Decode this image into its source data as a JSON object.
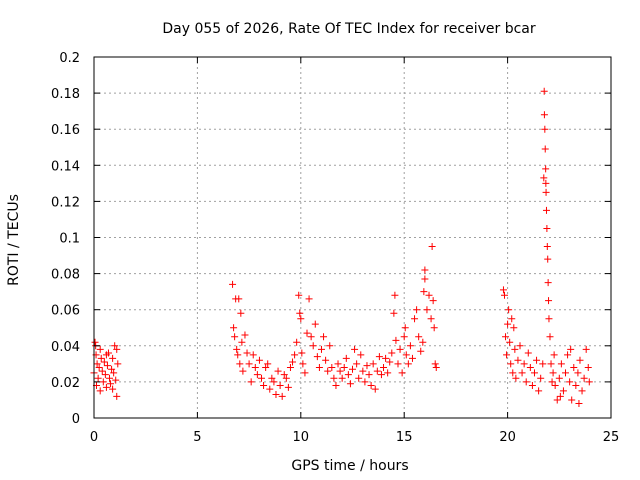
{
  "chart_data": {
    "type": "scatter",
    "title": "Day 055 of 2026, Rate Of TEC Index for receiver bcar",
    "xlabel": "GPS time / hours",
    "ylabel": "ROTI / TECUs",
    "xlim": [
      0,
      25
    ],
    "ylim": [
      0,
      0.2
    ],
    "xticks": [
      0,
      5,
      10,
      15,
      20,
      25
    ],
    "xtick_labels": [
      "0",
      "5",
      "10",
      "15",
      "20",
      "25"
    ],
    "yticks": [
      0,
      0.02,
      0.04,
      0.06,
      0.08,
      0.1,
      0.12,
      0.14,
      0.16,
      0.18,
      0.2
    ],
    "ytick_labels": [
      "0",
      "0.02",
      "0.04",
      "0.06",
      "0.08",
      "0.1",
      "0.12",
      "0.14",
      "0.16",
      "0.18",
      "0.2"
    ],
    "grid": true,
    "marker": "plus",
    "marker_color": "#ff0000",
    "series": [
      {
        "points": [
          [
            0.0,
            0.025
          ],
          [
            0.05,
            0.042
          ],
          [
            0.1,
            0.035
          ],
          [
            0.12,
            0.018
          ],
          [
            0.15,
            0.03
          ],
          [
            0.2,
            0.022
          ],
          [
            0.25,
            0.028
          ],
          [
            0.3,
            0.015
          ],
          [
            0.35,
            0.033
          ],
          [
            0.4,
            0.026
          ],
          [
            0.45,
            0.02
          ],
          [
            0.5,
            0.031
          ],
          [
            0.55,
            0.024
          ],
          [
            0.6,
            0.017
          ],
          [
            0.65,
            0.029
          ],
          [
            0.7,
            0.036
          ],
          [
            0.75,
            0.022
          ],
          [
            0.8,
            0.019
          ],
          [
            0.85,
            0.027
          ],
          [
            0.9,
            0.033
          ],
          [
            0.95,
            0.025
          ],
          [
            1.0,
            0.04
          ],
          [
            1.05,
            0.021
          ],
          [
            1.1,
            0.012
          ],
          [
            1.15,
            0.03
          ],
          [
            0.08,
            0.04
          ],
          [
            0.3,
            0.038
          ],
          [
            0.6,
            0.035
          ],
          [
            0.9,
            0.016
          ],
          [
            1.1,
            0.038
          ],
          [
            6.7,
            0.074
          ],
          [
            6.75,
            0.05
          ],
          [
            6.8,
            0.045
          ],
          [
            6.85,
            0.066
          ],
          [
            6.9,
            0.038
          ],
          [
            6.95,
            0.035
          ],
          [
            7.0,
            0.066
          ],
          [
            7.05,
            0.03
          ],
          [
            7.1,
            0.058
          ],
          [
            7.15,
            0.042
          ],
          [
            7.2,
            0.026
          ],
          [
            7.3,
            0.046
          ],
          [
            7.4,
            0.036
          ],
          [
            7.5,
            0.03
          ],
          [
            7.6,
            0.02
          ],
          [
            7.7,
            0.035
          ],
          [
            7.8,
            0.028
          ],
          [
            7.9,
            0.024
          ],
          [
            8.0,
            0.032
          ],
          [
            8.1,
            0.022
          ],
          [
            8.2,
            0.018
          ],
          [
            8.3,
            0.028
          ],
          [
            8.4,
            0.03
          ],
          [
            8.5,
            0.016
          ],
          [
            8.6,
            0.022
          ],
          [
            8.7,
            0.02
          ],
          [
            8.8,
            0.013
          ],
          [
            8.9,
            0.026
          ],
          [
            9.0,
            0.018
          ],
          [
            9.1,
            0.012
          ],
          [
            9.2,
            0.024
          ],
          [
            9.3,
            0.022
          ],
          [
            9.4,
            0.017
          ],
          [
            9.5,
            0.028
          ],
          [
            9.6,
            0.031
          ],
          [
            9.7,
            0.035
          ],
          [
            9.8,
            0.042
          ],
          [
            9.9,
            0.068
          ],
          [
            9.95,
            0.058
          ],
          [
            10.0,
            0.055
          ],
          [
            10.05,
            0.036
          ],
          [
            10.1,
            0.03
          ],
          [
            10.2,
            0.025
          ],
          [
            10.3,
            0.047
          ],
          [
            10.4,
            0.066
          ],
          [
            10.5,
            0.045
          ],
          [
            10.6,
            0.04
          ],
          [
            10.7,
            0.052
          ],
          [
            10.8,
            0.034
          ],
          [
            10.9,
            0.028
          ],
          [
            11.0,
            0.038
          ],
          [
            11.1,
            0.045
          ],
          [
            11.2,
            0.032
          ],
          [
            11.3,
            0.026
          ],
          [
            11.4,
            0.04
          ],
          [
            11.5,
            0.028
          ],
          [
            11.6,
            0.022
          ],
          [
            11.7,
            0.018
          ],
          [
            11.8,
            0.03
          ],
          [
            11.9,
            0.026
          ],
          [
            12.0,
            0.022
          ],
          [
            12.1,
            0.028
          ],
          [
            12.2,
            0.033
          ],
          [
            12.3,
            0.024
          ],
          [
            12.4,
            0.019
          ],
          [
            12.5,
            0.027
          ],
          [
            12.6,
            0.038
          ],
          [
            12.7,
            0.03
          ],
          [
            12.8,
            0.022
          ],
          [
            12.9,
            0.035
          ],
          [
            13.0,
            0.026
          ],
          [
            13.1,
            0.02
          ],
          [
            13.2,
            0.029
          ],
          [
            13.3,
            0.024
          ],
          [
            13.4,
            0.018
          ],
          [
            13.5,
            0.03
          ],
          [
            13.6,
            0.016
          ],
          [
            13.7,
            0.026
          ],
          [
            13.8,
            0.034
          ],
          [
            13.9,
            0.024
          ],
          [
            14.0,
            0.028
          ],
          [
            14.1,
            0.033
          ],
          [
            14.2,
            0.025
          ],
          [
            14.3,
            0.031
          ],
          [
            14.4,
            0.036
          ],
          [
            14.5,
            0.058
          ],
          [
            14.55,
            0.068
          ],
          [
            14.6,
            0.043
          ],
          [
            14.7,
            0.03
          ],
          [
            14.8,
            0.038
          ],
          [
            14.9,
            0.025
          ],
          [
            15.0,
            0.045
          ],
          [
            15.05,
            0.05
          ],
          [
            15.1,
            0.035
          ],
          [
            15.2,
            0.03
          ],
          [
            15.3,
            0.04
          ],
          [
            15.4,
            0.033
          ],
          [
            15.5,
            0.055
          ],
          [
            15.6,
            0.06
          ],
          [
            15.7,
            0.045
          ],
          [
            15.8,
            0.037
          ],
          [
            15.9,
            0.042
          ],
          [
            16.0,
            0.077
          ],
          [
            16.1,
            0.06
          ],
          [
            16.2,
            0.068
          ],
          [
            16.3,
            0.055
          ],
          [
            16.35,
            0.095
          ],
          [
            16.4,
            0.065
          ],
          [
            16.45,
            0.05
          ],
          [
            16.5,
            0.03
          ],
          [
            16.55,
            0.028
          ],
          [
            16.0,
            0.082
          ],
          [
            15.95,
            0.07
          ],
          [
            19.8,
            0.071
          ],
          [
            19.85,
            0.068
          ],
          [
            19.9,
            0.045
          ],
          [
            19.95,
            0.035
          ],
          [
            20.0,
            0.052
          ],
          [
            20.05,
            0.06
          ],
          [
            20.1,
            0.042
          ],
          [
            20.15,
            0.03
          ],
          [
            20.2,
            0.055
          ],
          [
            20.25,
            0.025
          ],
          [
            20.3,
            0.05
          ],
          [
            20.35,
            0.038
          ],
          [
            20.4,
            0.022
          ],
          [
            20.5,
            0.032
          ],
          [
            20.6,
            0.04
          ],
          [
            20.7,
            0.025
          ],
          [
            20.8,
            0.03
          ],
          [
            20.9,
            0.02
          ],
          [
            21.0,
            0.036
          ],
          [
            21.1,
            0.028
          ],
          [
            21.2,
            0.018
          ],
          [
            21.3,
            0.025
          ],
          [
            21.4,
            0.032
          ],
          [
            21.5,
            0.015
          ],
          [
            21.6,
            0.022
          ],
          [
            21.7,
            0.03
          ],
          [
            21.75,
            0.133
          ],
          [
            21.77,
            0.181
          ],
          [
            21.78,
            0.168
          ],
          [
            21.8,
            0.16
          ],
          [
            21.82,
            0.149
          ],
          [
            21.84,
            0.138
          ],
          [
            21.86,
            0.125
          ],
          [
            21.88,
            0.115
          ],
          [
            21.9,
            0.105
          ],
          [
            21.92,
            0.095
          ],
          [
            21.94,
            0.088
          ],
          [
            21.96,
            0.075
          ],
          [
            21.98,
            0.065
          ],
          [
            22.0,
            0.055
          ],
          [
            22.05,
            0.045
          ],
          [
            22.1,
            0.03
          ],
          [
            22.15,
            0.02
          ],
          [
            22.2,
            0.025
          ],
          [
            22.3,
            0.018
          ],
          [
            22.4,
            0.01
          ],
          [
            22.5,
            0.022
          ],
          [
            22.6,
            0.03
          ],
          [
            22.7,
            0.015
          ],
          [
            22.8,
            0.025
          ],
          [
            22.9,
            0.035
          ],
          [
            23.0,
            0.02
          ],
          [
            23.1,
            0.01
          ],
          [
            23.2,
            0.028
          ],
          [
            23.3,
            0.018
          ],
          [
            23.4,
            0.025
          ],
          [
            23.5,
            0.032
          ],
          [
            23.6,
            0.015
          ],
          [
            23.7,
            0.022
          ],
          [
            23.8,
            0.038
          ],
          [
            23.9,
            0.028
          ],
          [
            23.95,
            0.02
          ],
          [
            22.25,
            0.035
          ],
          [
            22.55,
            0.012
          ],
          [
            23.05,
            0.038
          ],
          [
            23.45,
            0.008
          ],
          [
            21.85,
            0.13
          ]
        ]
      }
    ]
  }
}
